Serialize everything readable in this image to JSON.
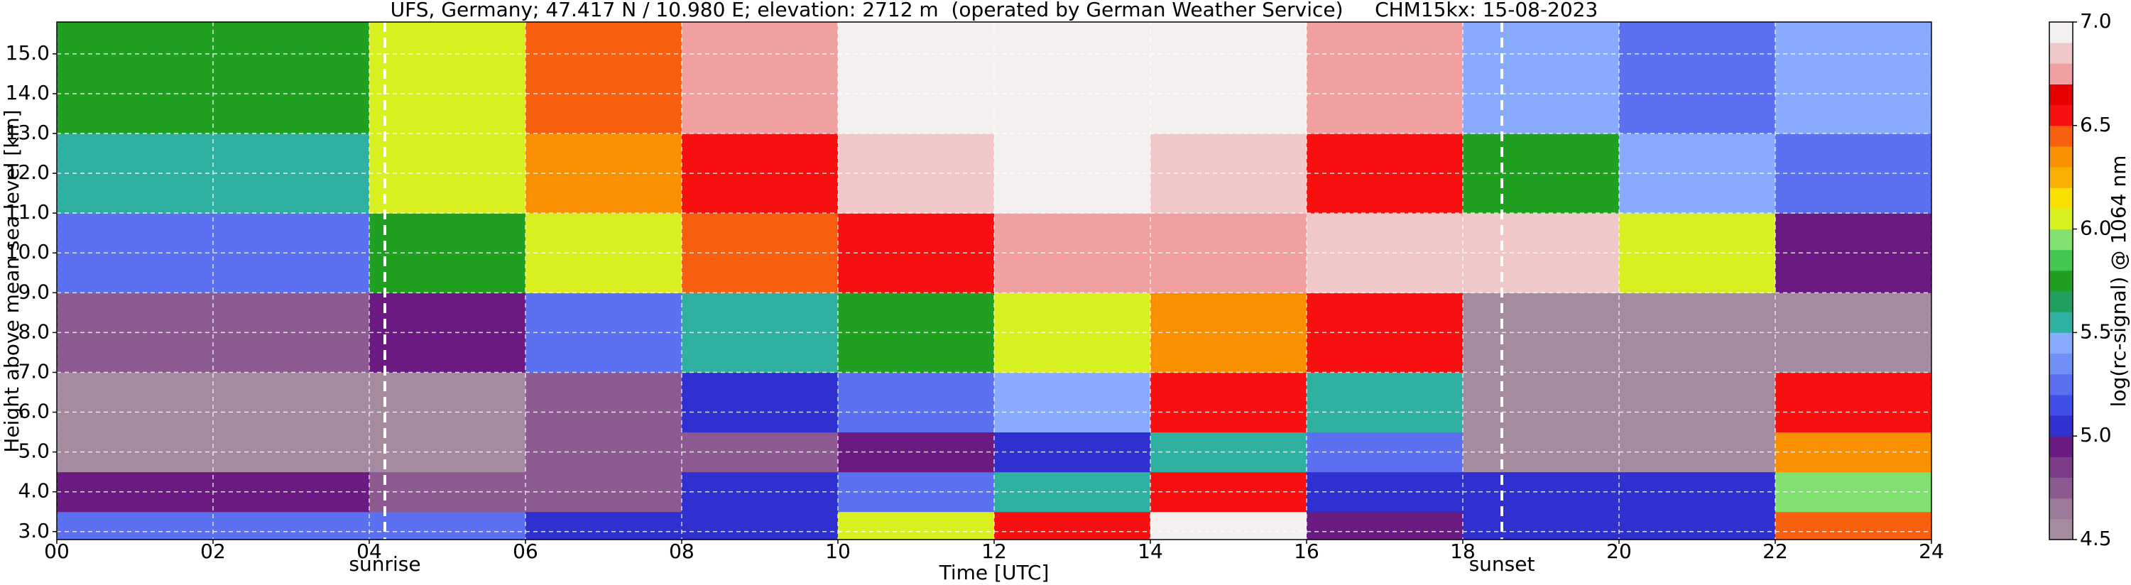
{
  "chart_data": {
    "type": "heatmap",
    "title": "UFS, Germany; 47.417 N / 10.980 E; elevation: 2712 m  (operated by German Weather Service)     CHM15kx: 15-08-2023",
    "x_label": "Time [UTC]",
    "y_label": "Height above mean sea level [km]",
    "colorbar_label": "log(rc-signal) @ 1064 nm",
    "xlim": [
      0,
      24
    ],
    "xticks": [
      {
        "value": 0,
        "label": "00"
      },
      {
        "value": 2,
        "label": "02"
      },
      {
        "value": 4,
        "label": "04"
      },
      {
        "value": 6,
        "label": "06"
      },
      {
        "value": 8,
        "label": "08"
      },
      {
        "value": 10,
        "label": "10"
      },
      {
        "value": 12,
        "label": "12"
      },
      {
        "value": 14,
        "label": "14"
      },
      {
        "value": 16,
        "label": "16"
      },
      {
        "value": 18,
        "label": "18"
      },
      {
        "value": 20,
        "label": "20"
      },
      {
        "value": 22,
        "label": "22"
      },
      {
        "value": 24,
        "label": "24"
      }
    ],
    "ylim": [
      2.8,
      15.8
    ],
    "yticks": [
      {
        "value": 3,
        "label": "3.0"
      },
      {
        "value": 4,
        "label": "4.0"
      },
      {
        "value": 5,
        "label": "5.0"
      },
      {
        "value": 6,
        "label": "6.0"
      },
      {
        "value": 7,
        "label": "7.0"
      },
      {
        "value": 8,
        "label": "8.0"
      },
      {
        "value": 9,
        "label": "9.0"
      },
      {
        "value": 10,
        "label": "10.0"
      },
      {
        "value": 11,
        "label": "11.0"
      },
      {
        "value": 12,
        "label": "12.0"
      },
      {
        "value": 13,
        "label": "13.0"
      },
      {
        "value": 14,
        "label": "14.0"
      },
      {
        "value": 15,
        "label": "15.0"
      }
    ],
    "clim": [
      4.5,
      7.0
    ],
    "cticks": [
      {
        "value": 4.5,
        "label": "4.5"
      },
      {
        "value": 5,
        "label": "5.0"
      },
      {
        "value": 5.5,
        "label": "5.5"
      },
      {
        "value": 6,
        "label": "6.0"
      },
      {
        "value": 6.5,
        "label": "6.5"
      },
      {
        "value": 7,
        "label": "7.0"
      }
    ],
    "colors": [
      "#a48ba0",
      "#9a7a98",
      "#8c5a90",
      "#7c3d88",
      "#6a1a80",
      "#3030d0",
      "#4050e8",
      "#5a70f0",
      "#7090f8",
      "#88aaff",
      "#30b0a0",
      "#20a060",
      "#20a020",
      "#40c850",
      "#80e070",
      "#d8f020",
      "#f8e000",
      "#f8b000",
      "#f89000",
      "#f86010",
      "#f81010",
      "#e80000",
      "#f0a0a0",
      "#f0c8c8",
      "#f4f0f0"
    ],
    "grid": true,
    "x_bins": [
      0,
      2,
      4,
      6,
      8,
      10,
      12,
      14,
      16,
      18,
      20,
      22,
      24
    ],
    "y_bins": [
      2.8,
      3.5,
      4.5,
      5.5,
      7,
      9,
      11,
      13,
      15.8
    ],
    "z": [
      [
        5.3,
        4.9,
        4.6,
        4.5,
        4.7,
        5.2,
        5.5,
        5.7
      ],
      [
        5.3,
        4.9,
        4.6,
        4.5,
        4.7,
        5.3,
        5.6,
        5.8
      ],
      [
        5.2,
        4.8,
        4.6,
        4.6,
        4.9,
        5.7,
        6.0,
        6.1
      ],
      [
        5.1,
        4.8,
        4.7,
        4.8,
        5.3,
        6.1,
        6.3,
        6.4
      ],
      [
        5.1,
        5.0,
        4.8,
        5.0,
        5.6,
        6.4,
        6.6,
        6.7
      ],
      [
        6.0,
        5.2,
        4.9,
        5.2,
        5.8,
        6.6,
        6.8,
        6.9
      ],
      [
        6.6,
        5.5,
        5.0,
        5.4,
        6.0,
        6.7,
        6.9,
        7.0
      ],
      [
        6.9,
        6.5,
        5.6,
        6.5,
        6.3,
        6.7,
        6.8,
        6.9
      ],
      [
        4.9,
        5.0,
        5.3,
        5.6,
        6.6,
        6.8,
        6.6,
        6.7
      ],
      [
        5.1,
        5.0,
        4.6,
        4.5,
        4.6,
        6.8,
        5.8,
        5.4
      ],
      [
        5.0,
        5.1,
        4.6,
        4.5,
        4.5,
        6.0,
        5.4,
        5.2
      ],
      [
        6.4,
        5.9,
        6.3,
        6.5,
        4.6,
        4.9,
        5.2,
        5.4
      ]
    ],
    "annotations": [
      {
        "x": 4.2,
        "label": "sunrise"
      },
      {
        "x": 18.5,
        "label": "sunset"
      }
    ]
  }
}
